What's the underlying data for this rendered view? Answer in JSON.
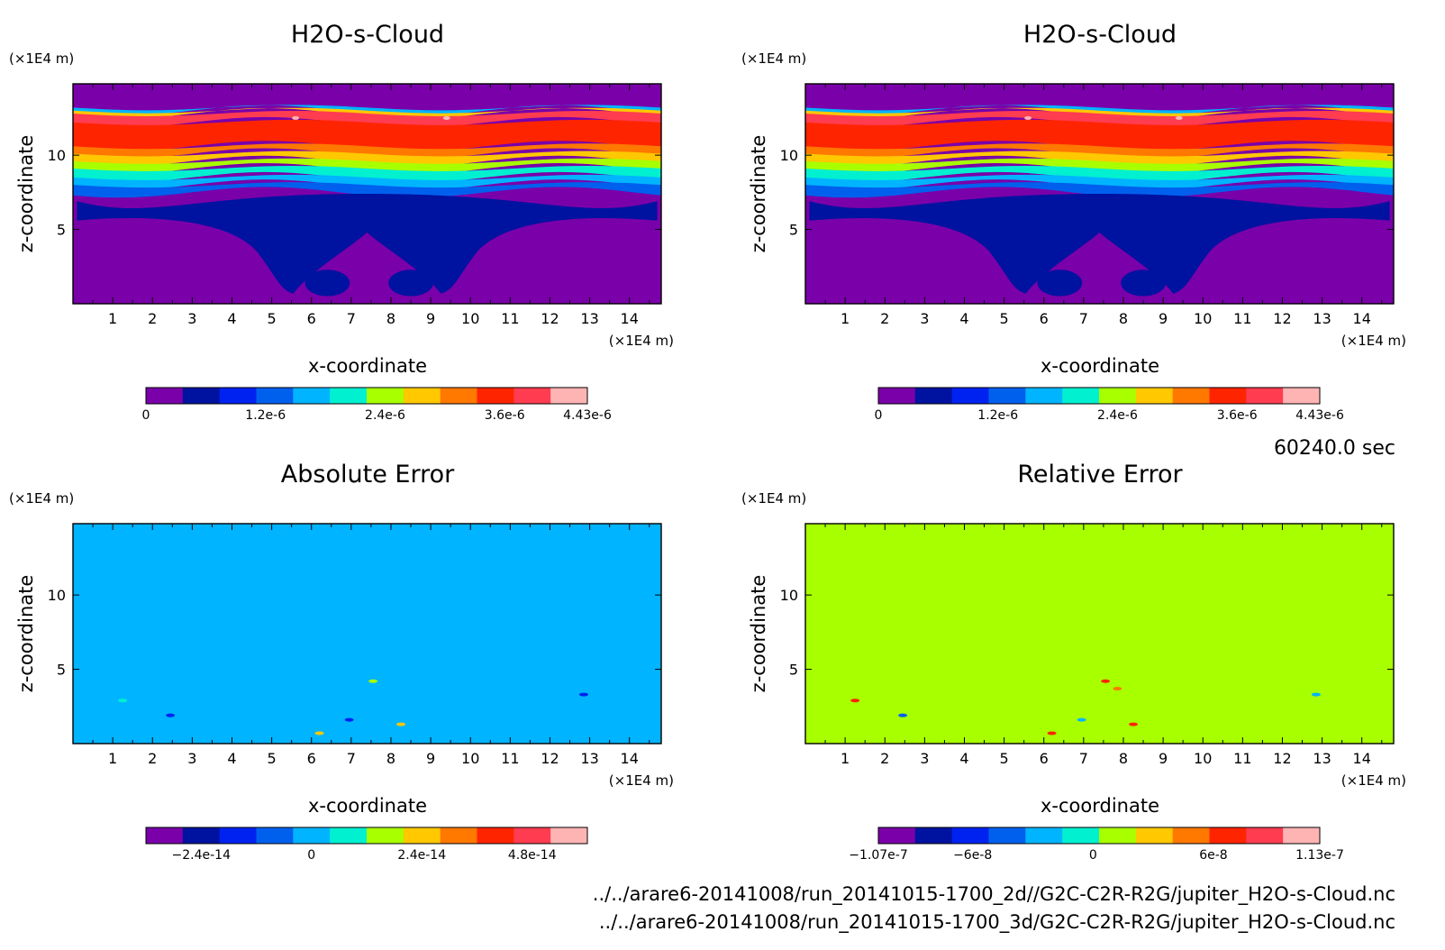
{
  "time_label": "60240.0 sec",
  "file_paths": [
    "../../arare6-20141008/run_20141015-1700_2d//G2C-C2R-R2G/jupiter_H2O-s-Cloud.nc",
    "../../arare6-20141008/run_20141015-1700_3d/G2C-C2R-R2G/jupiter_H2O-s-Cloud.nc"
  ],
  "colors": {
    "purple": "#7a00a9",
    "navy": "#0012a0",
    "blue": "#0022f0",
    "mid_blue": "#0060ee",
    "sky": "#00b4ff",
    "cyan": "#00f0d0",
    "lime": "#a8ff00",
    "yellow": "#ffc800",
    "orange": "#ff7800",
    "red": "#ff2400",
    "light_red": "#ff3c50",
    "pink": "#ffb4b4"
  },
  "chart_data": [
    {
      "type": "heatmap",
      "title": "H2O-s-Cloud",
      "xlabel": "x-coordinate",
      "ylabel": "z-coordinate",
      "x_unit": "(×1E4 m)",
      "y_unit": "(×1E4 m)",
      "xlim": [
        0,
        14.8
      ],
      "ylim": [
        0,
        14.8
      ],
      "x_ticks": [
        1,
        2,
        3,
        4,
        5,
        6,
        7,
        8,
        9,
        10,
        11,
        12,
        13,
        14
      ],
      "y_ticks": [
        5,
        10
      ],
      "colorbar": {
        "range": [
          0,
          4.43e-06
        ],
        "levels": 11,
        "labels": [
          {
            "text": "0",
            "value": 0
          },
          {
            "text": "1.2e-6",
            "value": 1.2e-06
          },
          {
            "text": "2.4e-6",
            "value": 2.4e-06
          },
          {
            "text": "3.6e-6",
            "value": 3.6e-06
          },
          {
            "text": "4.43e-6",
            "value": 4.43e-06
          }
        ],
        "colors": [
          "#7a00a9",
          "#0012a0",
          "#0022f0",
          "#0060ee",
          "#00b4ff",
          "#00f0d0",
          "#a8ff00",
          "#ffc800",
          "#ff7800",
          "#ff2400",
          "#ff3c50",
          "#ffb4b4"
        ]
      },
      "field": {
        "background": "#7a00a9",
        "bands_from_top": [
          {
            "color": "#7a00a9",
            "z_top": 14.8,
            "z_bottom": 13.2
          },
          {
            "color": "#00b4ff",
            "z_top": 13.2,
            "z_bottom": 13.0
          },
          {
            "color": "#ffc800",
            "z_top": 13.0,
            "z_bottom": 12.8
          },
          {
            "color": "#ff3c50",
            "z_top": 12.8,
            "z_bottom": 12.2
          },
          {
            "color": "#ff2400",
            "z_top": 12.2,
            "z_bottom": 10.6
          },
          {
            "color": "#ff7800",
            "z_top": 10.6,
            "z_bottom": 10.1
          },
          {
            "color": "#ffc800",
            "z_top": 10.1,
            "z_bottom": 9.6
          },
          {
            "color": "#a8ff00",
            "z_top": 9.6,
            "z_bottom": 9.1
          },
          {
            "color": "#00f0d0",
            "z_top": 9.1,
            "z_bottom": 8.5
          },
          {
            "color": "#00b4ff",
            "z_top": 8.5,
            "z_bottom": 8.0
          },
          {
            "color": "#0060ee",
            "z_top": 8.0,
            "z_bottom": 7.5
          }
        ],
        "dome_color": "#0012a0"
      }
    },
    {
      "type": "heatmap",
      "title": "H2O-s-Cloud",
      "xlabel": "x-coordinate",
      "ylabel": "z-coordinate",
      "x_unit": "(×1E4 m)",
      "y_unit": "(×1E4 m)",
      "xlim": [
        0,
        14.8
      ],
      "ylim": [
        0,
        14.8
      ],
      "x_ticks": [
        1,
        2,
        3,
        4,
        5,
        6,
        7,
        8,
        9,
        10,
        11,
        12,
        13,
        14
      ],
      "y_ticks": [
        5,
        10
      ],
      "colorbar": {
        "range": [
          0,
          4.43e-06
        ],
        "levels": 11,
        "labels": [
          {
            "text": "0",
            "value": 0
          },
          {
            "text": "1.2e-6",
            "value": 1.2e-06
          },
          {
            "text": "2.4e-6",
            "value": 2.4e-06
          },
          {
            "text": "3.6e-6",
            "value": 3.6e-06
          },
          {
            "text": "4.43e-6",
            "value": 4.43e-06
          }
        ],
        "colors": [
          "#7a00a9",
          "#0012a0",
          "#0022f0",
          "#0060ee",
          "#00b4ff",
          "#00f0d0",
          "#a8ff00",
          "#ffc800",
          "#ff7800",
          "#ff2400",
          "#ff3c50",
          "#ffb4b4"
        ]
      },
      "field": {
        "background": "#7a00a9",
        "bands_from_top": [
          {
            "color": "#7a00a9",
            "z_top": 14.8,
            "z_bottom": 13.2
          },
          {
            "color": "#00b4ff",
            "z_top": 13.2,
            "z_bottom": 13.0
          },
          {
            "color": "#ffc800",
            "z_top": 13.0,
            "z_bottom": 12.8
          },
          {
            "color": "#ff3c50",
            "z_top": 12.8,
            "z_bottom": 12.2
          },
          {
            "color": "#ff2400",
            "z_top": 12.2,
            "z_bottom": 10.6
          },
          {
            "color": "#ff7800",
            "z_top": 10.6,
            "z_bottom": 10.1
          },
          {
            "color": "#ffc800",
            "z_top": 10.1,
            "z_bottom": 9.6
          },
          {
            "color": "#a8ff00",
            "z_top": 9.6,
            "z_bottom": 9.1
          },
          {
            "color": "#00f0d0",
            "z_top": 9.1,
            "z_bottom": 8.5
          },
          {
            "color": "#00b4ff",
            "z_top": 8.5,
            "z_bottom": 8.0
          },
          {
            "color": "#0060ee",
            "z_top": 8.0,
            "z_bottom": 7.5
          }
        ],
        "dome_color": "#0012a0"
      }
    },
    {
      "type": "heatmap",
      "title": "Absolute Error",
      "xlabel": "x-coordinate",
      "ylabel": "z-coordinate",
      "x_unit": "(×1E4 m)",
      "y_unit": "(×1E4 m)",
      "xlim": [
        0,
        14.8
      ],
      "ylim": [
        0,
        14.8
      ],
      "x_ticks": [
        1,
        2,
        3,
        4,
        5,
        6,
        7,
        8,
        9,
        10,
        11,
        12,
        13,
        14
      ],
      "y_ticks": [
        5,
        10
      ],
      "colorbar": {
        "range": [
          -3.6e-14,
          6e-14
        ],
        "levels": 11,
        "labels": [
          {
            "text": "−2.4e-14",
            "value": -2.4e-14
          },
          {
            "text": "0",
            "value": 0
          },
          {
            "text": "2.4e-14",
            "value": 2.4e-14
          },
          {
            "text": "4.8e-14",
            "value": 4.8e-14
          }
        ],
        "colors": [
          "#7a00a9",
          "#0012a0",
          "#0022f0",
          "#0060ee",
          "#00b4ff",
          "#00f0d0",
          "#a8ff00",
          "#ffc800",
          "#ff7800",
          "#ff2400",
          "#ff3c50",
          "#ffb4b4"
        ]
      },
      "field": {
        "background": "#00b4ff",
        "spots": [
          {
            "x": 1.25,
            "z": 2.9,
            "color": "#00f0d0"
          },
          {
            "x": 2.45,
            "z": 1.9,
            "color": "#0022f0"
          },
          {
            "x": 6.2,
            "z": 0.7,
            "color": "#ffc800"
          },
          {
            "x": 6.95,
            "z": 1.6,
            "color": "#0022f0"
          },
          {
            "x": 7.55,
            "z": 4.2,
            "color": "#a8ff00"
          },
          {
            "x": 8.25,
            "z": 1.3,
            "color": "#ffc800"
          },
          {
            "x": 12.85,
            "z": 3.3,
            "color": "#0022f0"
          }
        ]
      }
    },
    {
      "type": "heatmap",
      "title": "Relative Error",
      "xlabel": "x-coordinate",
      "ylabel": "z-coordinate",
      "x_unit": "(×1E4 m)",
      "y_unit": "(×1E4 m)",
      "xlim": [
        0,
        14.8
      ],
      "ylim": [
        0,
        14.8
      ],
      "x_ticks": [
        1,
        2,
        3,
        4,
        5,
        6,
        7,
        8,
        9,
        10,
        11,
        12,
        13,
        14
      ],
      "y_ticks": [
        5,
        10
      ],
      "colorbar": {
        "range": [
          -1.07e-07,
          1.13e-07
        ],
        "levels": 11,
        "labels": [
          {
            "text": "−1.07e-7",
            "value": -1.07e-07
          },
          {
            "text": "−6e-8",
            "value": -6e-08
          },
          {
            "text": "0",
            "value": 0
          },
          {
            "text": "6e-8",
            "value": 6e-08
          },
          {
            "text": "1.13e-7",
            "value": 1.13e-07
          }
        ],
        "colors": [
          "#7a00a9",
          "#0012a0",
          "#0022f0",
          "#0060ee",
          "#00b4ff",
          "#00f0d0",
          "#a8ff00",
          "#ffc800",
          "#ff7800",
          "#ff2400",
          "#ff3c50",
          "#ffb4b4"
        ]
      },
      "field": {
        "background": "#a8ff00",
        "spots": [
          {
            "x": 1.25,
            "z": 2.9,
            "color": "#ff2400"
          },
          {
            "x": 2.45,
            "z": 1.9,
            "color": "#0060ee"
          },
          {
            "x": 6.2,
            "z": 0.7,
            "color": "#ff2400"
          },
          {
            "x": 6.95,
            "z": 1.6,
            "color": "#00b4ff"
          },
          {
            "x": 7.55,
            "z": 4.2,
            "color": "#ff2400"
          },
          {
            "x": 7.85,
            "z": 3.7,
            "color": "#ff7800"
          },
          {
            "x": 8.25,
            "z": 1.3,
            "color": "#ff2400"
          },
          {
            "x": 12.85,
            "z": 3.3,
            "color": "#00b4ff"
          }
        ]
      }
    }
  ]
}
